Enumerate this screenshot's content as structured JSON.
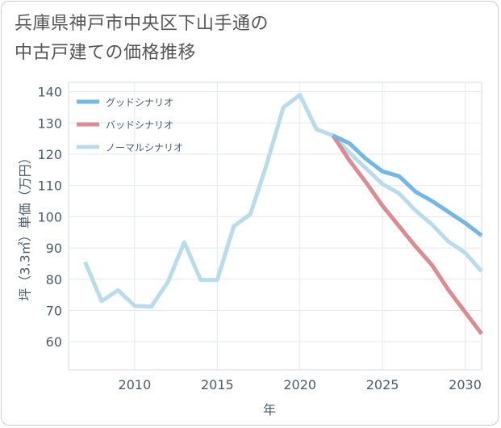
{
  "page": {
    "title_line1": "兵庫県神戸市中央区下山手通の",
    "title_line2": "中古戸建ての価格推移"
  },
  "chart_data": {
    "type": "line",
    "title": "兵庫県神戸市中央区下山手通の中古戸建ての価格推移",
    "xlabel": "年",
    "ylabel": "坪（3.3㎡）単価（万円）",
    "xlim": [
      2006,
      2031
    ],
    "ylim": [
      51,
      143
    ],
    "x_ticks": [
      2010,
      2015,
      2020,
      2025,
      2030
    ],
    "y_ticks": [
      60,
      70,
      80,
      90,
      100,
      110,
      120,
      130,
      140
    ],
    "grid": true,
    "legend_position": "top-left",
    "series": [
      {
        "name": "グッドシナリオ",
        "color": "#72b7e8",
        "x": [
          2022,
          2023,
          2024,
          2025,
          2026,
          2027,
          2028,
          2029,
          2030,
          2031
        ],
        "values": [
          126,
          123.5,
          118.5,
          114.5,
          113,
          108,
          105,
          101.5,
          98,
          94
        ]
      },
      {
        "name": "バッドシナリオ",
        "color": "#dd8a90",
        "x": [
          2022,
          2023,
          2024,
          2025,
          2026,
          2027,
          2028,
          2029,
          2030,
          2031
        ],
        "values": [
          126,
          118,
          111,
          103.5,
          97,
          90.5,
          84.5,
          76.5,
          69.5,
          62.5
        ]
      },
      {
        "name": "ノーマルシナリオ",
        "color": "#b8dcec",
        "x": [
          2007,
          2008,
          2009,
          2010,
          2011,
          2012,
          2013,
          2014,
          2015,
          2016,
          2017,
          2018,
          2019,
          2020,
          2021,
          2022,
          2023,
          2024,
          2025,
          2026,
          2027,
          2028,
          2029,
          2030,
          2031
        ],
        "values": [
          85.5,
          73,
          76.5,
          71.5,
          71.2,
          79,
          91.8,
          79.8,
          79.8,
          97,
          100.8,
          117,
          135,
          139,
          128,
          126,
          120.5,
          115.5,
          110.5,
          107.5,
          102,
          97.5,
          92,
          88.5,
          82.5
        ]
      }
    ]
  }
}
